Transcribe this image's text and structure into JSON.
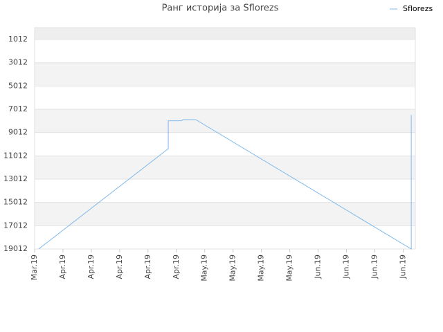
{
  "chart_data": {
    "type": "line",
    "title": "Ранг историја за Sflorezs",
    "x": [
      1,
      33,
      33,
      36.3,
      36.6,
      39.8,
      93,
      93
    ],
    "series": [
      {
        "name": "Sflorezs",
        "color": "#7fb9ec",
        "values": [
          19012,
          10400,
          8000,
          8000,
          7900,
          7900,
          19012,
          7500
        ]
      }
    ],
    "xlim": [
      0,
      94
    ],
    "xticks": [
      {
        "value": 0,
        "label": "Mar.19"
      },
      {
        "value": 7,
        "label": "Apr.19"
      },
      {
        "value": 14,
        "label": "Apr.19"
      },
      {
        "value": 21,
        "label": "Apr.19"
      },
      {
        "value": 28,
        "label": "Apr.19"
      },
      {
        "value": 35,
        "label": "Apr.19"
      },
      {
        "value": 42,
        "label": "May.19"
      },
      {
        "value": 49,
        "label": "May.19"
      },
      {
        "value": 56,
        "label": "May.19"
      },
      {
        "value": 63,
        "label": "May.19"
      },
      {
        "value": 70,
        "label": "Jun.19"
      },
      {
        "value": 77,
        "label": "Jun.19"
      },
      {
        "value": 84,
        "label": "Jun.19"
      },
      {
        "value": 91,
        "label": "Jun.19"
      }
    ],
    "ylim": [
      19012,
      0
    ],
    "yticks": [
      1012,
      3012,
      5012,
      7012,
      9012,
      11012,
      13012,
      15012,
      17012,
      19012
    ],
    "grid": true,
    "legend": "top-right"
  }
}
